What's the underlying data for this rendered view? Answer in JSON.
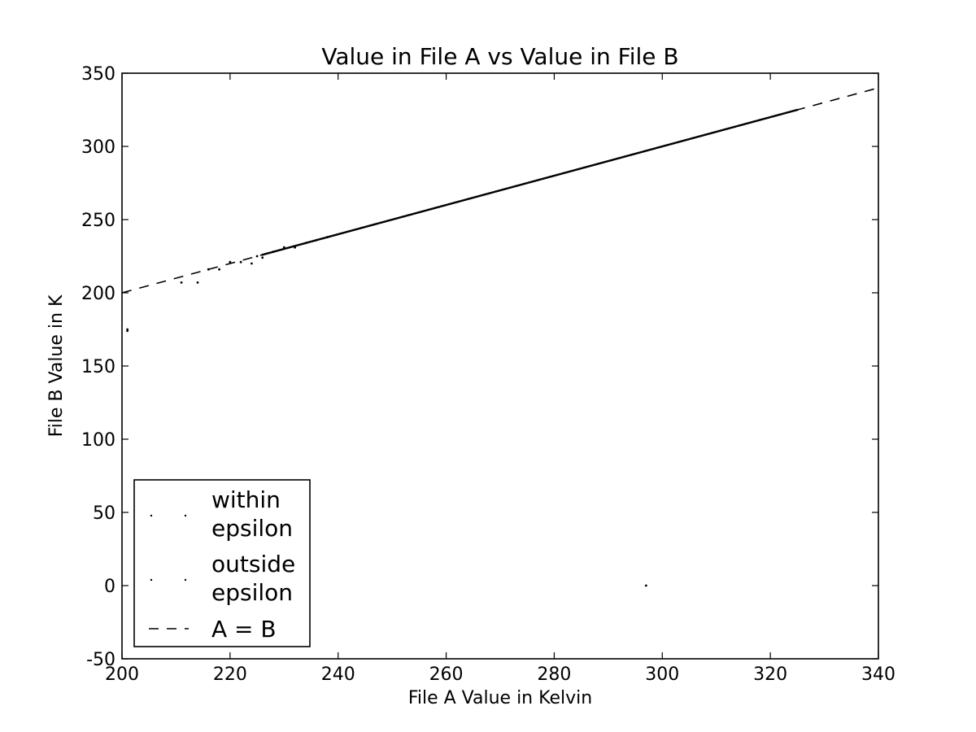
{
  "chart_data": {
    "type": "scatter",
    "title": "Value in File A vs Value in File B",
    "xlabel": "File A Value in Kelvin",
    "ylabel": "File B Value in K",
    "xlim": [
      200,
      340
    ],
    "ylim": [
      -50,
      350
    ],
    "xticks": [
      200,
      220,
      240,
      260,
      280,
      300,
      320,
      340
    ],
    "yticks": [
      -50,
      0,
      50,
      100,
      150,
      200,
      250,
      300,
      350
    ],
    "grid": false,
    "legend_position": "lower-left",
    "series": [
      {
        "name": "within epsilon",
        "marker": "point",
        "color": "#000000",
        "x_range": [
          226,
          325
        ],
        "note_points": [
          [
            226,
            226
          ],
          [
            250,
            250
          ],
          [
            275,
            275
          ],
          [
            300,
            300
          ],
          [
            325,
            325
          ]
        ]
      },
      {
        "name": "outside epsilon",
        "marker": "point",
        "color": "#000000",
        "points": [
          [
            201,
            174
          ],
          [
            201,
            175
          ],
          [
            211,
            207
          ],
          [
            214,
            207
          ],
          [
            216,
            216
          ],
          [
            218,
            216
          ],
          [
            220,
            221
          ],
          [
            222,
            221
          ],
          [
            224,
            220
          ],
          [
            225,
            225
          ],
          [
            226,
            224
          ],
          [
            228,
            228
          ],
          [
            230,
            231
          ],
          [
            232,
            231
          ],
          [
            234,
            234
          ],
          [
            236,
            236
          ],
          [
            238,
            238
          ],
          [
            297,
            0
          ]
        ]
      },
      {
        "name": "A = B",
        "line_style": "dashed",
        "color": "#000000",
        "x": [
          200,
          340
        ],
        "y": [
          200,
          340
        ]
      }
    ]
  }
}
